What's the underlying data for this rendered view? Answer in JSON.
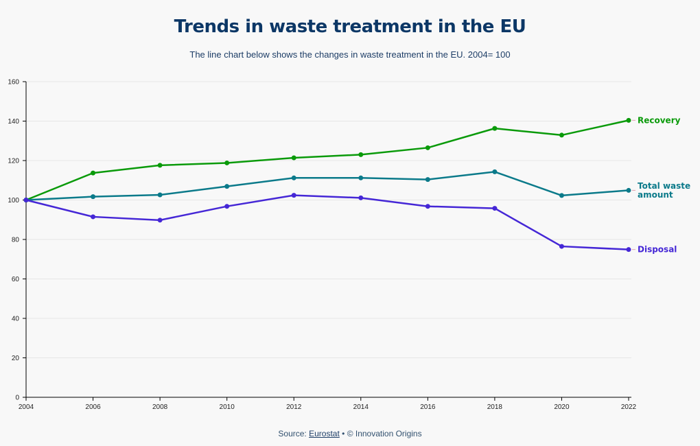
{
  "header": {
    "title": "Trends in waste treatment in the EU",
    "subtitle": "The line chart below shows the changes in waste treatment in the EU. 2004= 100"
  },
  "footer": {
    "source_prefix": "Source: ",
    "source_link": "Eurostat",
    "separator": " • ",
    "credit": "© Innovation Origins"
  },
  "chart_data": {
    "type": "line",
    "title": "Trends in waste treatment in the EU",
    "subtitle": "The line chart below shows the changes in waste treatment in the EU. 2004= 100",
    "xlabel": "",
    "ylabel": "",
    "x": [
      2004,
      2006,
      2008,
      2010,
      2012,
      2014,
      2016,
      2018,
      2020,
      2022
    ],
    "xticks": [
      "2004",
      "2006",
      "2008",
      "2010",
      "2012",
      "2014",
      "2016",
      "2018",
      "2020",
      "2022"
    ],
    "yticks": [
      "0",
      "20",
      "40",
      "60",
      "80",
      "100",
      "120",
      "140",
      "160"
    ],
    "ylim": [
      0,
      160
    ],
    "xlim": [
      2004,
      2022
    ],
    "grid": true,
    "legend": "direct-labels-right",
    "series": [
      {
        "name": "Recovery",
        "color": "#0a9a0a",
        "label_lines": [
          "Recovery"
        ],
        "values": [
          100,
          113.7,
          117.6,
          118.8,
          121.4,
          123.0,
          126.5,
          136.3,
          132.9,
          140.4
        ]
      },
      {
        "name": "Total waste amount",
        "color": "#0b7a8a",
        "label_lines": [
          "Total waste",
          "amount"
        ],
        "values": [
          100,
          101.7,
          102.6,
          106.9,
          111.2,
          111.2,
          110.4,
          114.3,
          102.3,
          104.9
        ]
      },
      {
        "name": "Disposal",
        "color": "#4527d6",
        "label_lines": [
          "Disposal"
        ],
        "values": [
          100,
          91.5,
          89.8,
          96.8,
          102.4,
          101.1,
          96.8,
          95.8,
          76.5,
          74.9
        ]
      }
    ]
  }
}
